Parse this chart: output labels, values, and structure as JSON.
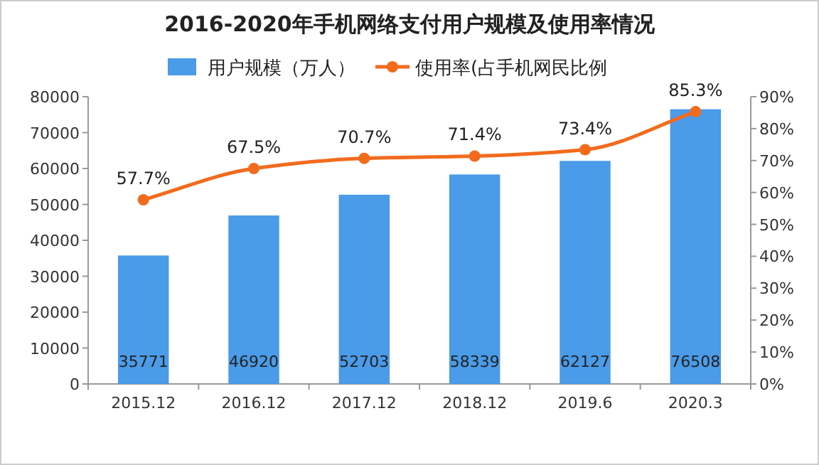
{
  "chart_data": {
    "type": "bar",
    "title": "2016-2020年手机网络支付用户规模及使用率情况",
    "categories": [
      "2015.12",
      "2016.12",
      "2017.12",
      "2018.12",
      "2019.6",
      "2020.3"
    ],
    "series": [
      {
        "name": "用户规模（万人）",
        "color": "#4a9be8",
        "values": [
          35771,
          46920,
          52703,
          58339,
          62127,
          76508
        ]
      },
      {
        "name": "使用率(占手机网民比例",
        "type": "line",
        "axis": "y2",
        "color": "#f26b1d",
        "marker": "circle",
        "values": [
          57.7,
          67.5,
          70.7,
          71.4,
          73.4,
          85.3
        ],
        "value_labels": [
          "57.7%",
          "67.5%",
          "70.7%",
          "71.4%",
          "73.4%",
          "85.3%"
        ]
      }
    ],
    "data_labels": true,
    "ylim": [
      0,
      80000
    ],
    "yticks": [
      0,
      10000,
      20000,
      30000,
      40000,
      50000,
      60000,
      70000,
      80000
    ],
    "y2lim": [
      0,
      90
    ],
    "y2ticks": [
      {
        "value": 0,
        "label": "0%"
      },
      {
        "value": 10,
        "label": "10%"
      },
      {
        "value": 20,
        "label": "20%"
      },
      {
        "value": 30,
        "label": "30%"
      },
      {
        "value": 40,
        "label": "40%"
      },
      {
        "value": 50,
        "label": "50%"
      },
      {
        "value": 60,
        "label": "60%"
      },
      {
        "value": 70,
        "label": "70%"
      },
      {
        "value": 80,
        "label": "80%"
      },
      {
        "value": 90,
        "label": "90%"
      }
    ],
    "legend": "top"
  }
}
